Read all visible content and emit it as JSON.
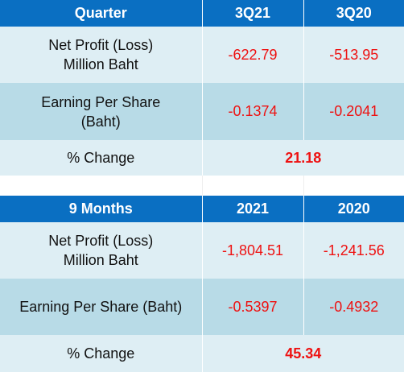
{
  "quarter_table": {
    "header": {
      "label": "Quarter",
      "col1": "3Q21",
      "col2": "3Q20"
    },
    "net_profit": {
      "label_line1": "Net Profit (Loss)",
      "label_line2": "Million Baht",
      "val1": "-622.79",
      "val2": "-513.95"
    },
    "eps": {
      "label_line1": "Earning Per Share",
      "label_line2": "(Baht)",
      "val1": "-0.1374",
      "val2": "-0.2041"
    },
    "change": {
      "label": "% Change",
      "value": "21.18"
    }
  },
  "nine_months_table": {
    "header": {
      "label": "9 Months",
      "col1": "2021",
      "col2": "2020"
    },
    "net_profit": {
      "label_line1": "Net Profit (Loss)",
      "label_line2": "Million Baht",
      "val1": "-1,804.51",
      "val2": "-1,241.56"
    },
    "eps": {
      "label": "Earning Per Share (Baht)",
      "val1": "-0.5397",
      "val2": "-0.4932"
    },
    "change": {
      "label": "% Change",
      "value": "45.34"
    }
  },
  "colors": {
    "header_bg": "#0a6fc2",
    "row_light": "#deeef4",
    "row_dark": "#b8dbe7",
    "negative_text": "#ee1111"
  }
}
